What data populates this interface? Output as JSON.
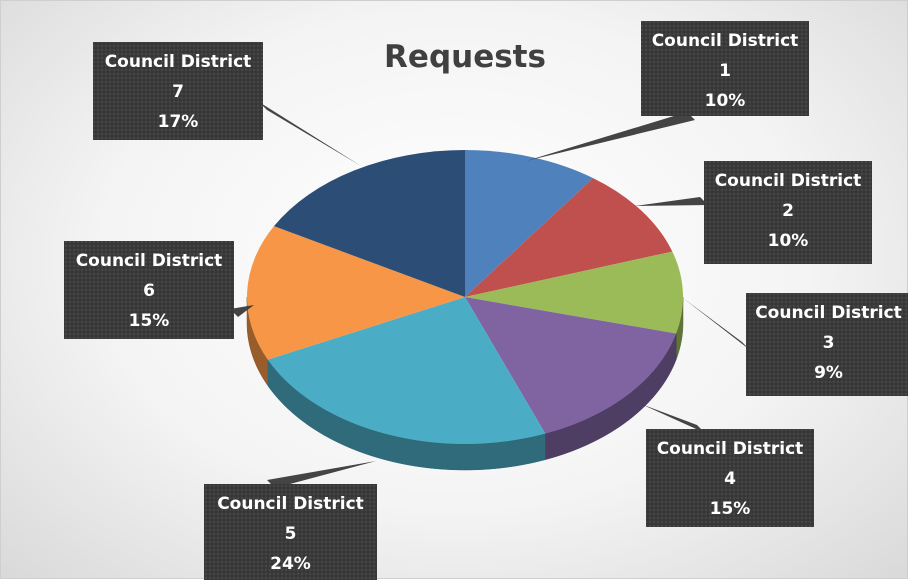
{
  "chart_data": {
    "type": "pie",
    "title": "Requests",
    "categories": [
      "Council District 1",
      "Council District 2",
      "Council District 3",
      "Council District 4",
      "Council District 5",
      "Council District 6",
      "Council District 7"
    ],
    "values": [
      10,
      10,
      9,
      15,
      24,
      15,
      17
    ],
    "unit": "%",
    "labels": [
      {
        "name": "Council District",
        "number": "1",
        "pct": "10%"
      },
      {
        "name": "Council District",
        "number": "2",
        "pct": "10%"
      },
      {
        "name": "Council District",
        "number": "3",
        "pct": "9%"
      },
      {
        "name": "Council District",
        "number": "4",
        "pct": "15%"
      },
      {
        "name": "Council District",
        "number": "5",
        "pct": "24%"
      },
      {
        "name": "Council District",
        "number": "6",
        "pct": "15%"
      },
      {
        "name": "Council District",
        "number": "7",
        "pct": "17%"
      }
    ],
    "colors": [
      "#4f81bd",
      "#c0504d",
      "#9bbb59",
      "#8064a2",
      "#4bacc6",
      "#f79646",
      "#2c4d75"
    ],
    "label_box_color": "#3a3a3a",
    "legend": "none",
    "style": "3d-pie"
  }
}
